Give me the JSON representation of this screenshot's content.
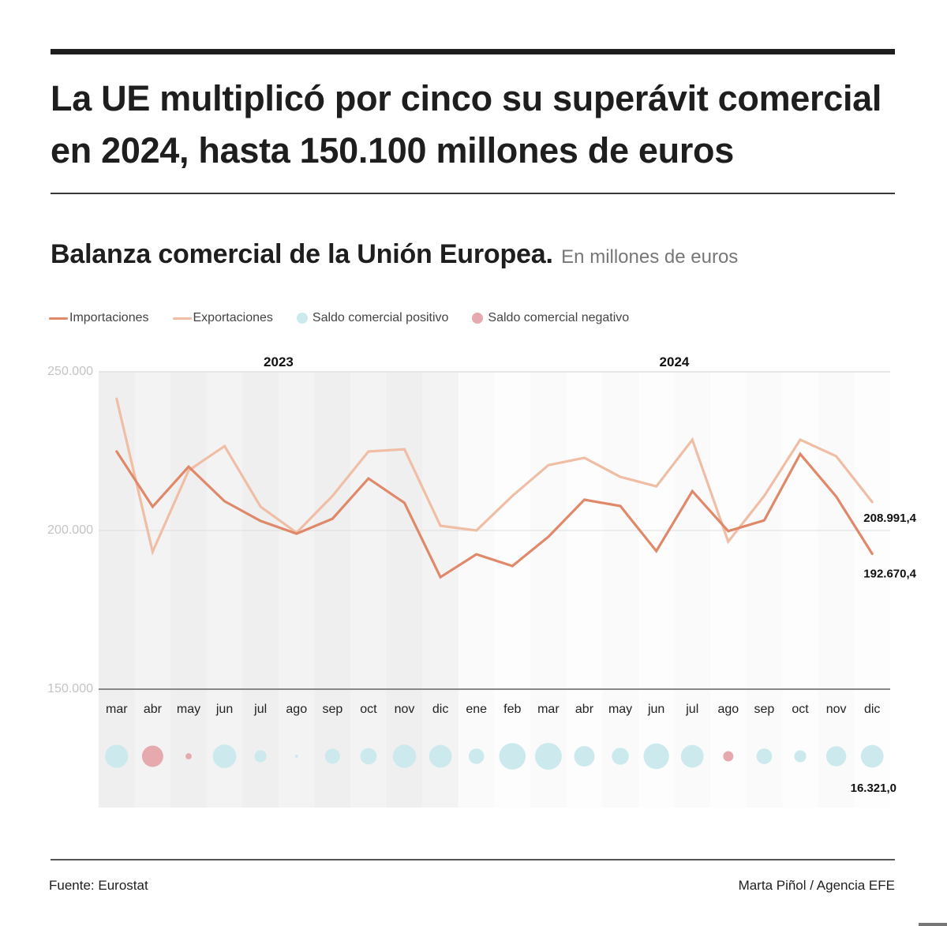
{
  "header": {
    "title": "La UE multiplicó por cinco su superávit comercial en 2024, hasta 150.100 millones de euros",
    "subtitle": "Balanza comercial de la Unión Europea.",
    "unit_note": "En millones de euros"
  },
  "legend": [
    {
      "label": "Importaciones",
      "type": "line",
      "color": "#e0896a"
    },
    {
      "label": "Exportaciones",
      "type": "line",
      "color": "#f0bda5"
    },
    {
      "label": "Saldo comercial positivo",
      "type": "dot",
      "color": "#cceaee"
    },
    {
      "label": "Saldo comercial negativo",
      "type": "dot",
      "color": "#e6a9ae"
    }
  ],
  "footer": {
    "source": "Fuente: Eurostat",
    "credit": "Marta Piñol / Agencia EFE"
  },
  "chart_data": {
    "type": "line",
    "title": "Balanza comercial de la Unión Europea",
    "ylabel": "En millones de euros",
    "ylim": [
      150000,
      250000
    ],
    "yticks": [
      250000,
      200000,
      150000
    ],
    "ytick_labels": [
      "250.000",
      "200.000",
      "150.000"
    ],
    "grid": true,
    "legend_position": "top-left",
    "year_groups": [
      {
        "label": "2023",
        "start": 0,
        "end": 9
      },
      {
        "label": "2024",
        "start": 10,
        "end": 21
      }
    ],
    "categories": [
      "mar",
      "abr",
      "may",
      "jun",
      "jul",
      "ago",
      "sep",
      "oct",
      "nov",
      "dic",
      "ene",
      "feb",
      "mar",
      "abr",
      "may",
      "jun",
      "jul",
      "ago",
      "sep",
      "oct",
      "nov",
      "dic"
    ],
    "series": [
      {
        "name": "Importaciones",
        "color": "#e0896a",
        "values": [
          224900,
          207500,
          220100,
          209200,
          203000,
          199000,
          203700,
          216400,
          208700,
          185300,
          192500,
          188800,
          198000,
          209700,
          207700,
          193500,
          212400,
          199800,
          203200,
          224100,
          210700,
          192670.4
        ]
      },
      {
        "name": "Exportaciones",
        "color": "#f0bda5",
        "values": [
          241500,
          193300,
          218900,
          226600,
          207500,
          199300,
          210900,
          224900,
          225600,
          201500,
          200000,
          210900,
          220600,
          222900,
          216900,
          213900,
          228600,
          196500,
          210900,
          228600,
          223400,
          208991.4
        ]
      },
      {
        "name": "Saldo comercial",
        "type": "bubble",
        "positive_color": "#cceaee",
        "negative_color": "#e6a9ae",
        "values": [
          16600,
          -14200,
          -1200,
          17400,
          4500,
          300,
          7200,
          8500,
          16900,
          16200,
          7500,
          22100,
          22600,
          13200,
          9200,
          20400,
          16200,
          -3300,
          7700,
          4500,
          12700,
          16321.0
        ]
      }
    ],
    "end_labels": {
      "exports": "208.991,4",
      "imports": "192.670,4",
      "balance": "16.321,0"
    }
  }
}
